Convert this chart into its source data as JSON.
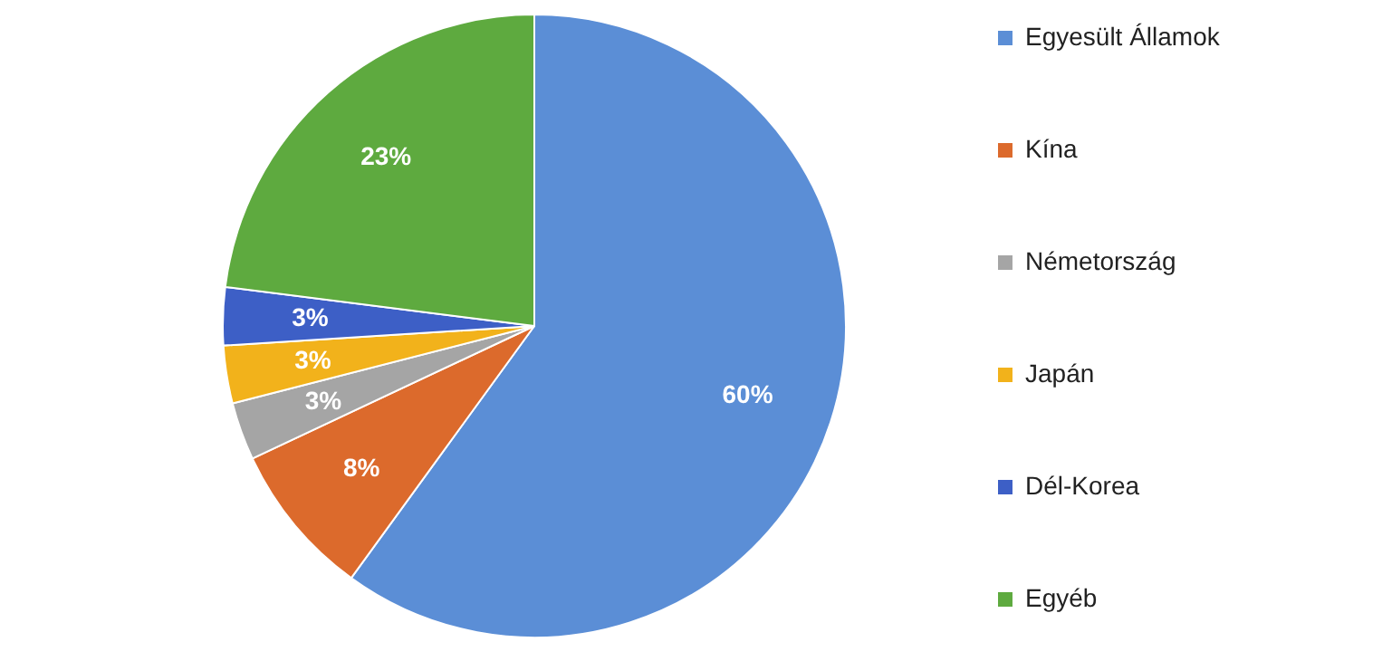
{
  "chart_data": {
    "type": "pie",
    "categories": [
      "Egyesült Államok",
      "Kína",
      "Németország",
      "Japán",
      "Dél-Korea",
      "Egyéb"
    ],
    "values": [
      60,
      8,
      3,
      3,
      3,
      23
    ],
    "colors": [
      "#5b8ed6",
      "#dc6a2c",
      "#a5a5a5",
      "#f2b21b",
      "#3d5fc6",
      "#5eaa3f"
    ],
    "value_labels": [
      "60%",
      "8%",
      "3%",
      "3%",
      "3%",
      "23%"
    ],
    "legend": "right"
  }
}
